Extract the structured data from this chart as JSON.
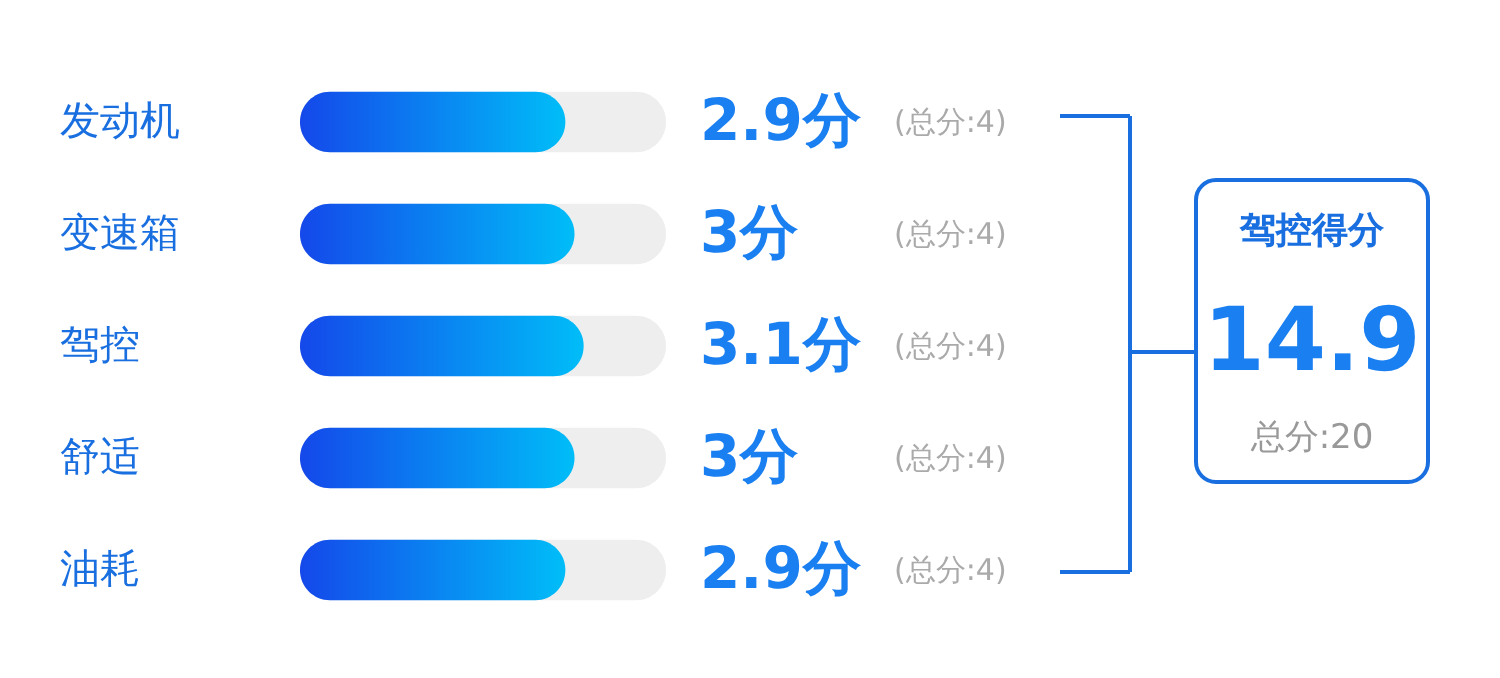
{
  "chart_data": {
    "type": "bar",
    "orientation": "horizontal",
    "categories": [
      "发动机",
      "变速箱",
      "驾控",
      "舒适",
      "油耗"
    ],
    "values": [
      2.9,
      3,
      3.1,
      3,
      2.9
    ],
    "value_labels": [
      "2.9分",
      "3分",
      "3.1分",
      "3分",
      "2.9分"
    ],
    "color": "#00bdf8",
    "xlim": [
      0,
      4
    ],
    "annotations": [
      "(总分:4)",
      "(总分:4)",
      "(总分:4)",
      "(总分:4)",
      "(总分:4)",
      "驾控得分",
      "14.9",
      "总分:20"
    ]
  }
}
